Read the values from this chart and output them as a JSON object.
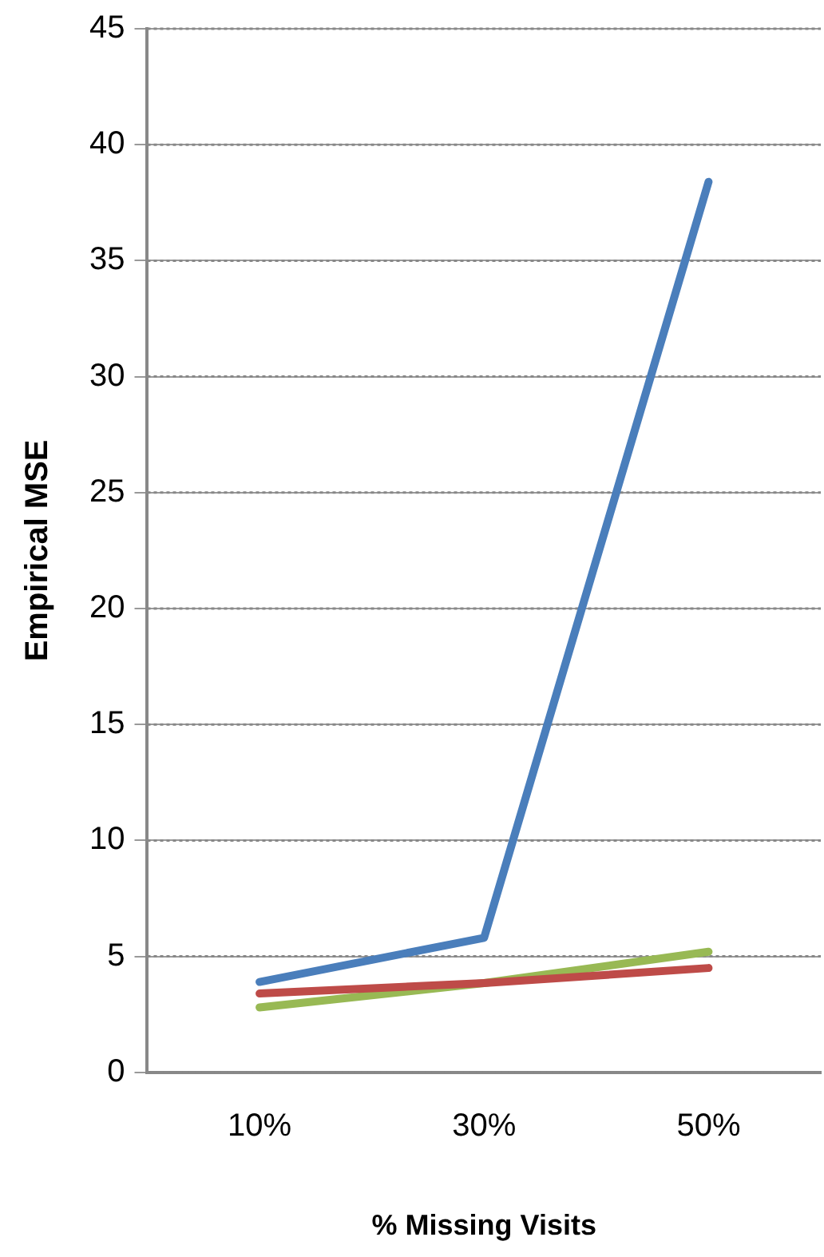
{
  "chart_data": {
    "type": "line",
    "xlabel": "% Missing Visits",
    "ylabel": "Empirical MSE",
    "categories": [
      "10%",
      "30%",
      "50%"
    ],
    "series": [
      {
        "color": "#4a7ebb",
        "values": [
          3.9,
          5.8,
          38.4
        ]
      },
      {
        "color": "#be4b48",
        "values": [
          3.4,
          3.85,
          4.5
        ]
      },
      {
        "color": "#98b954",
        "values": [
          2.8,
          3.85,
          5.2
        ]
      }
    ],
    "ylim": [
      0,
      45
    ],
    "yticks": [
      0,
      5,
      10,
      15,
      20,
      25,
      30,
      35,
      40,
      45
    ],
    "grid": "y",
    "legend": false,
    "marker": "none",
    "line_style": "solid"
  }
}
